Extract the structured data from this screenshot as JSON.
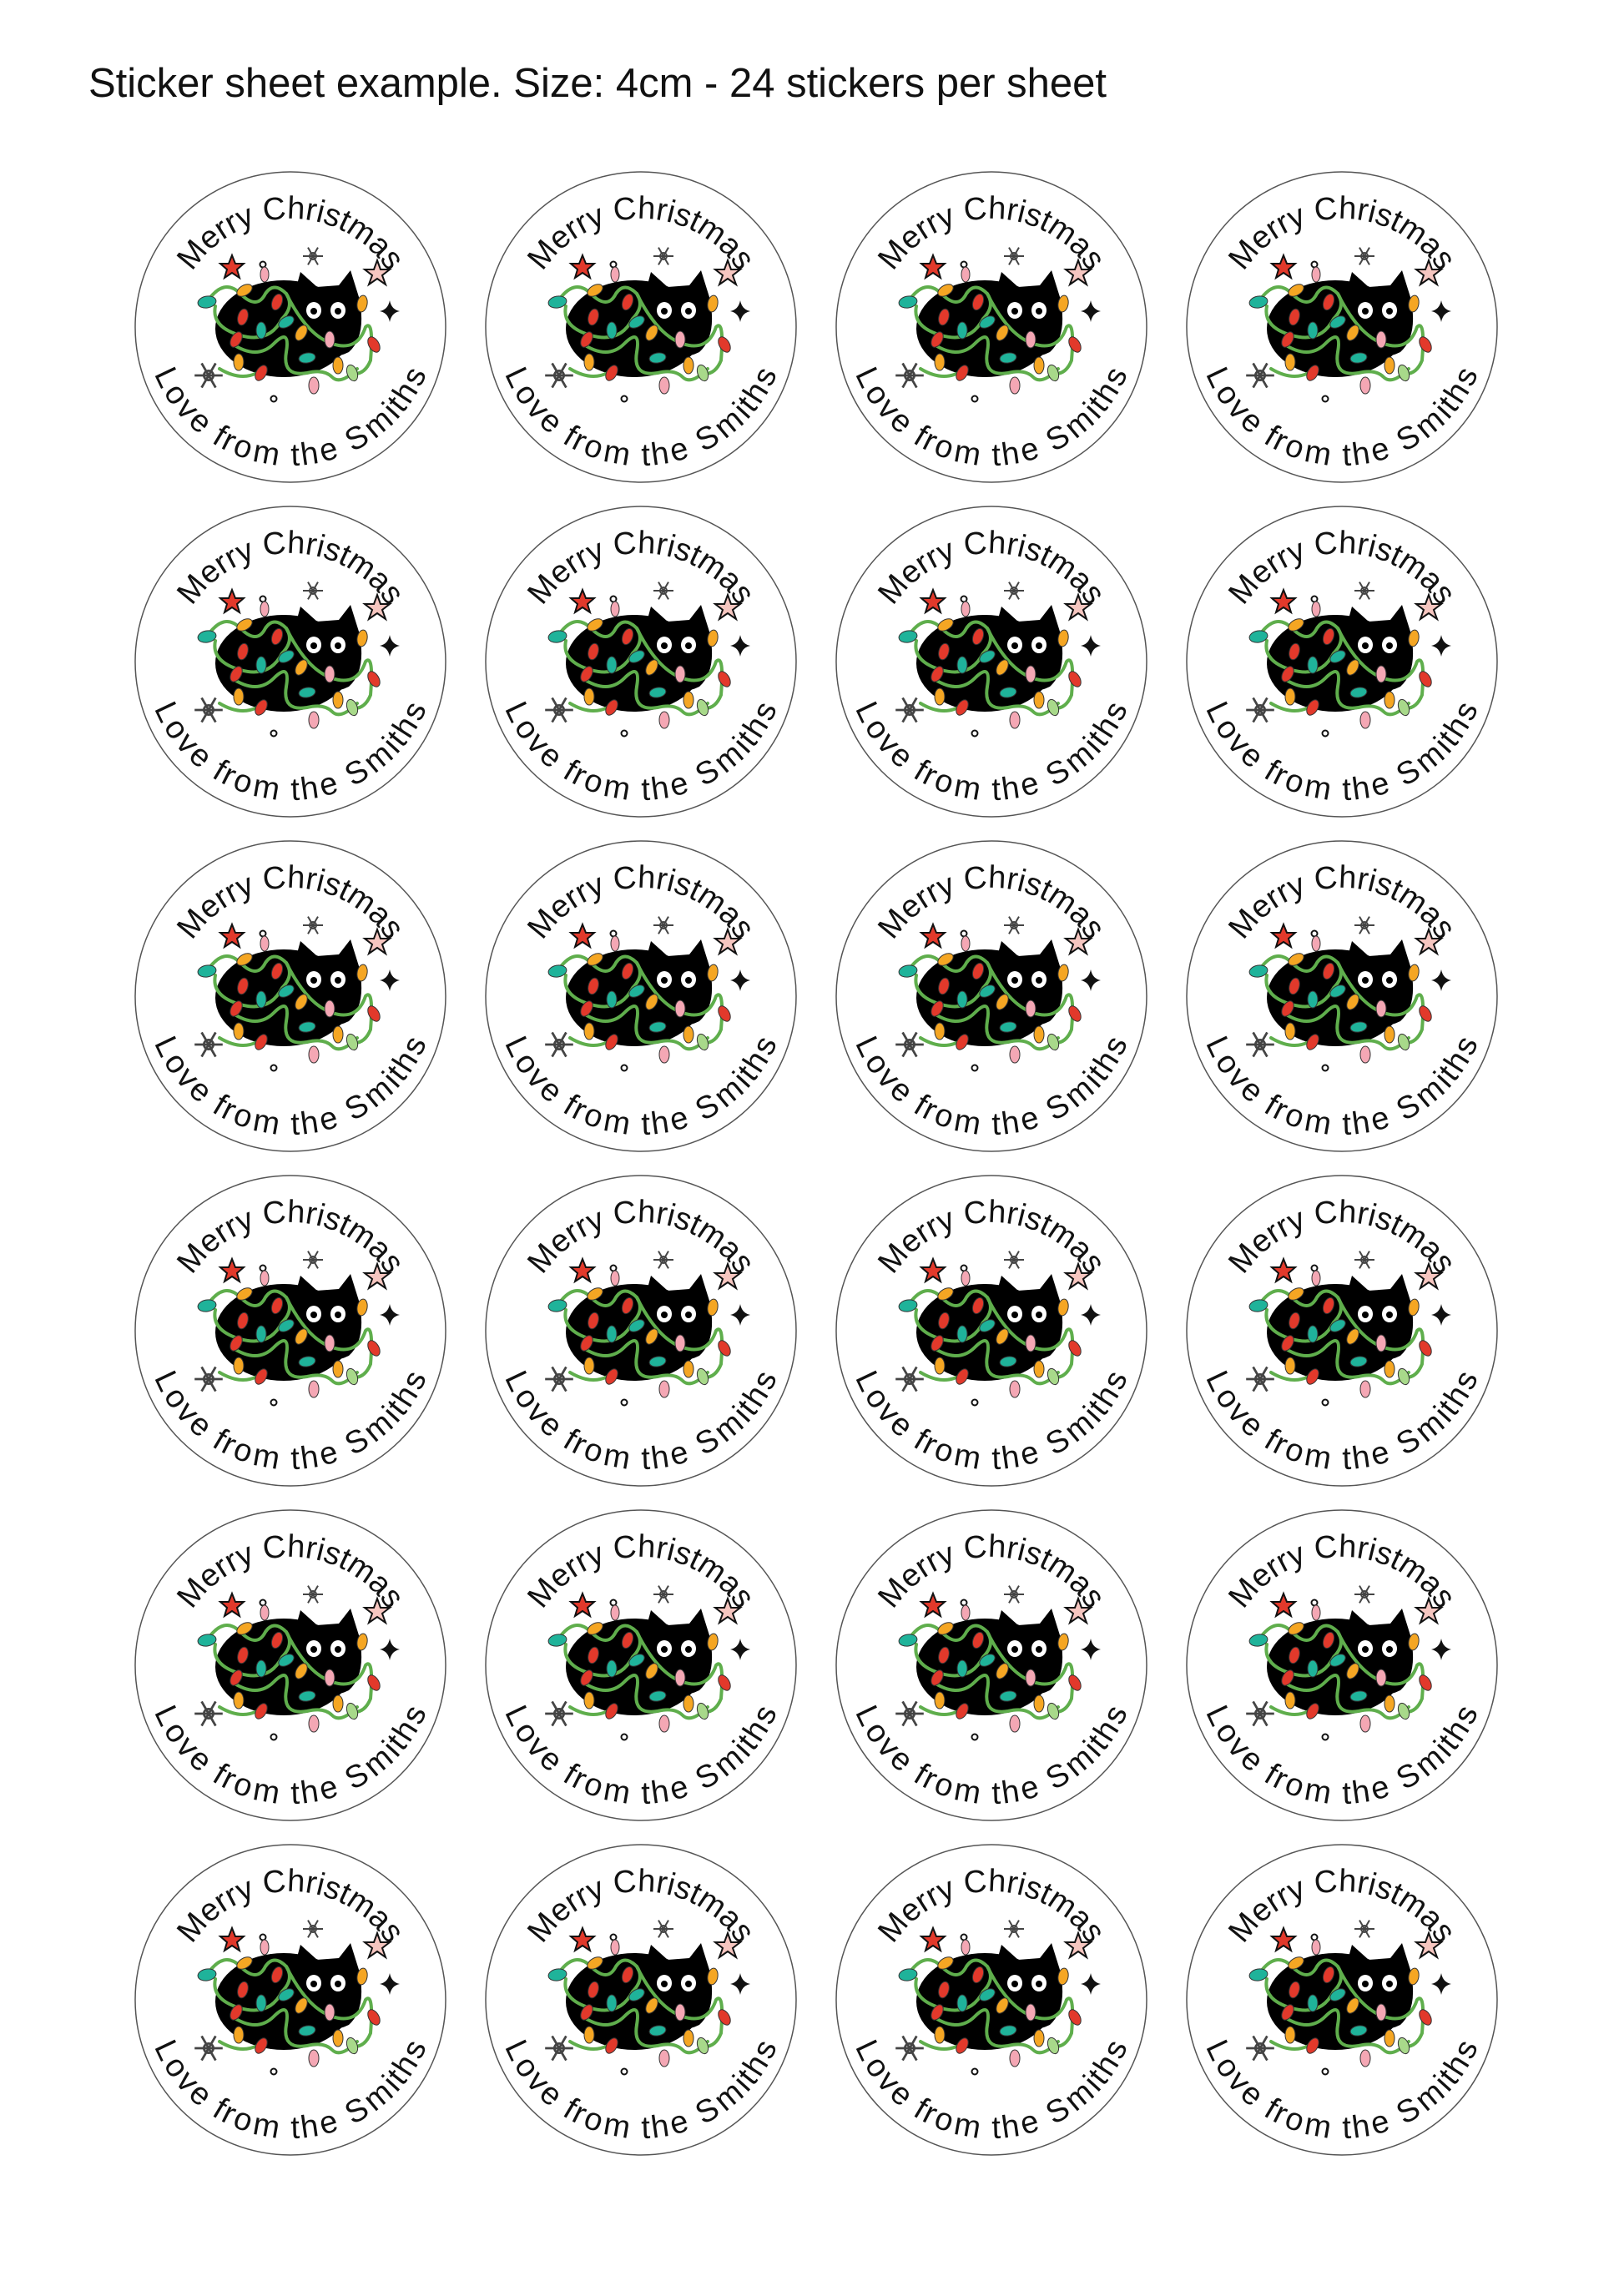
{
  "title": "Sticker sheet example. Size: 4cm - 24 stickers per sheet",
  "sticker": {
    "top_text": "Merry Christmas",
    "bottom_text": "Love from the Smiths"
  },
  "grid": {
    "columns": 4,
    "rows": 6
  },
  "colors": {
    "outline": "#555555",
    "light_green": "#5fae4c",
    "red": "#e2392b",
    "orange": "#f5a623",
    "teal": "#1fb39a",
    "pink": "#f4a7b4",
    "star_pink": "#f6c6c0",
    "cat": "#000000"
  }
}
